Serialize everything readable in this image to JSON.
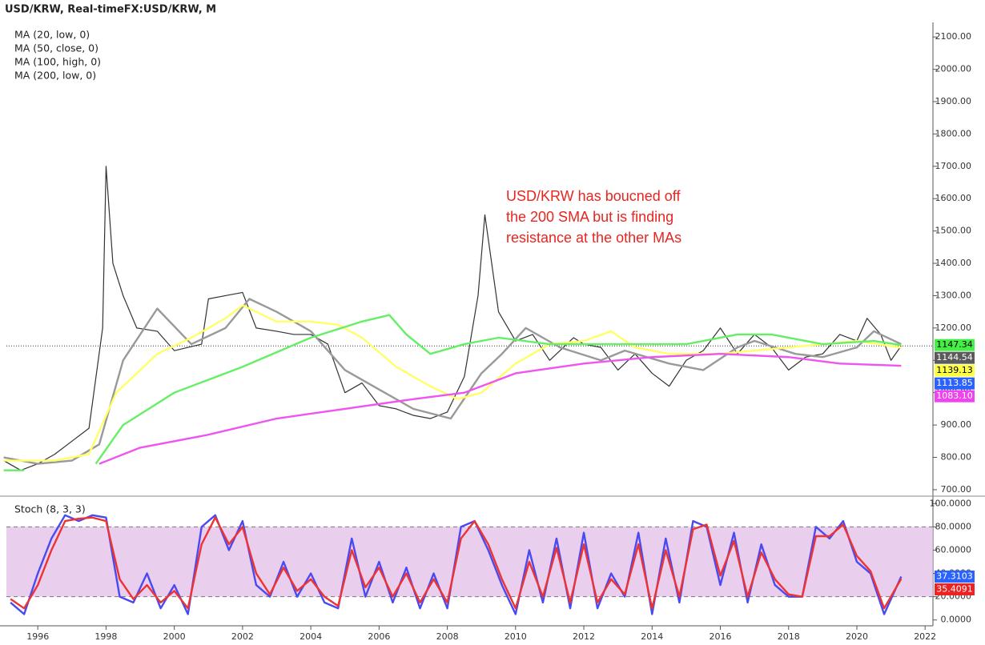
{
  "header": "USD/KRW, Real-timeFX:USD/KRW, M",
  "indicators": [
    "MA (20, low, 0)",
    "MA (50, close, 0)",
    "MA (100, high, 0)",
    "MA (200, low, 0)"
  ],
  "annotation": [
    "USD/KRW has boucned off",
    "the 200 SMA but is finding",
    "resistance at the other MAs"
  ],
  "chart_data": [
    {
      "type": "line",
      "xlim": [
        1995.08,
        2022.23
      ],
      "xticks": [
        1996,
        1998,
        2000,
        2002,
        2004,
        2006,
        2008,
        2010,
        2012,
        2014,
        2016,
        2018,
        2020,
        2022
      ],
      "ylim": [
        680,
        2145
      ],
      "yticks": [
        {
          "value": 700,
          "label": "700.00"
        },
        {
          "value": 800,
          "label": "800.00"
        },
        {
          "value": 900,
          "label": "900.00"
        },
        {
          "value": 1000,
          "label": "1000.00"
        },
        {
          "value": 1100,
          "label": "1100.00"
        },
        {
          "value": 1200,
          "label": "1200.00"
        },
        {
          "value": 1300,
          "label": "1300.00"
        },
        {
          "value": 1400,
          "label": "1400.00"
        },
        {
          "value": 1500,
          "label": "1500.00"
        },
        {
          "value": 1600,
          "label": "1600.00"
        },
        {
          "value": 1700,
          "label": "1700.00"
        },
        {
          "value": 1800,
          "label": "1800.00"
        },
        {
          "value": 1900,
          "label": "1900.00"
        },
        {
          "value": 2000,
          "label": "2000.00"
        },
        {
          "value": 2100,
          "label": "2100.00"
        }
      ],
      "last_price": 1144.54,
      "series": [
        {
          "color": "#333333",
          "x": [
            1995.0,
            1995.5,
            1996.0,
            1996.5,
            1997.0,
            1997.5,
            1997.9,
            1998.0,
            1998.2,
            1998.5,
            1998.9,
            1999.5,
            2000.0,
            2000.8,
            2001.0,
            2001.5,
            2002.0,
            2002.4,
            2003.0,
            2003.5,
            2004.0,
            2004.5,
            2005.0,
            2005.5,
            2006.0,
            2006.5,
            2007.0,
            2007.5,
            2008.0,
            2008.5,
            2008.9,
            2009.1,
            2009.5,
            2010.0,
            2010.5,
            2011.0,
            2011.7,
            2012.0,
            2012.5,
            2013.0,
            2013.5,
            2014.0,
            2014.5,
            2015.0,
            2015.5,
            2016.0,
            2016.5,
            2017.0,
            2017.5,
            2018.0,
            2018.5,
            2019.0,
            2019.5,
            2020.0,
            2020.3,
            2020.7,
            2021.0,
            2021.3
          ],
          "values": [
            790,
            760,
            780,
            810,
            850,
            890,
            1200,
            1700,
            1400,
            1300,
            1200,
            1190,
            1130,
            1150,
            1290,
            1300,
            1310,
            1200,
            1190,
            1180,
            1180,
            1150,
            1000,
            1030,
            960,
            950,
            930,
            920,
            940,
            1050,
            1300,
            1550,
            1250,
            1160,
            1180,
            1100,
            1170,
            1150,
            1140,
            1070,
            1120,
            1060,
            1020,
            1100,
            1130,
            1200,
            1120,
            1180,
            1140,
            1070,
            1110,
            1120,
            1180,
            1160,
            1230,
            1180,
            1100,
            1144.54
          ]
        },
        {
          "color": "#999999",
          "x": [
            1995.0,
            1996.0,
            1997.0,
            1997.8,
            1998.5,
            1999.5,
            2000.5,
            2001.5,
            2002.2,
            2003.0,
            2004.0,
            2005.0,
            2006.0,
            2007.0,
            2008.1,
            2009.0,
            2009.6,
            2010.3,
            2011.3,
            2012.5,
            2013.2,
            2014.5,
            2015.5,
            2016.5,
            2017.0,
            2018.2,
            2019.0,
            2020.0,
            2020.5,
            2021.3
          ],
          "values": [
            800,
            780,
            790,
            840,
            1100,
            1260,
            1150,
            1200,
            1290,
            1250,
            1190,
            1070,
            1010,
            950,
            920,
            1060,
            1120,
            1200,
            1140,
            1100,
            1130,
            1090,
            1070,
            1140,
            1160,
            1120,
            1110,
            1140,
            1190,
            1150
          ]
        },
        {
          "color": "#ffff66",
          "x": [
            1995.0,
            1996.5,
            1997.5,
            1998.3,
            1999.5,
            2000.5,
            2001.5,
            2002.0,
            2003.0,
            2004.0,
            2004.8,
            2005.5,
            2006.5,
            2007.5,
            2008.3,
            2009.0,
            2010.0,
            2011.0,
            2012.0,
            2012.8,
            2013.5,
            2014.5,
            2016.0,
            2017.0,
            2018.0,
            2019.0,
            2020.0,
            2021.3
          ],
          "values": [
            790,
            790,
            810,
            1000,
            1120,
            1170,
            1230,
            1270,
            1220,
            1220,
            1210,
            1170,
            1080,
            1020,
            980,
            1000,
            1090,
            1150,
            1160,
            1190,
            1140,
            1120,
            1120,
            1130,
            1140,
            1150,
            1160,
            1139.13
          ]
        },
        {
          "color": "#66ee66",
          "x": [
            1995.0,
            1995.6,
            1996.0,
            1997.7,
            1998.5,
            2000.0,
            2002.0,
            2004.0,
            2005.5,
            2006.3,
            2006.8,
            2007.5,
            2008.5,
            2009.5,
            2011.0,
            2013.0,
            2015.0,
            2016.5,
            2017.5,
            2019.0,
            2020.5,
            2021.3
          ],
          "values": [
            760,
            760,
            null,
            780,
            900,
            1000,
            1080,
            1170,
            1220,
            1240,
            1180,
            1120,
            1150,
            1170,
            1150,
            1150,
            1150,
            1180,
            1180,
            1150,
            1160,
            1147.34
          ]
        },
        {
          "color": "#ee55ee",
          "x": [
            1997.8,
            1999.0,
            2001.0,
            2003.0,
            2005.0,
            2007.0,
            2008.5,
            2010.0,
            2012.0,
            2014.0,
            2016.0,
            2018.0,
            2019.5,
            2021.3
          ],
          "values": [
            780,
            830,
            870,
            920,
            950,
            980,
            1000,
            1060,
            1090,
            1110,
            1120,
            1110,
            1090,
            1083.1
          ]
        }
      ],
      "price_tags": [
        {
          "value": 1147.34,
          "color": "#44ee44"
        },
        {
          "value": 1144.54,
          "color": "#5a5a5a"
        },
        {
          "value": 1139.13,
          "color": "#ffff44"
        },
        {
          "value": 1113.85,
          "color": "#2962ff"
        },
        {
          "value": 1083.1,
          "label": "1083.10",
          "color": "#ee44ee"
        }
      ]
    },
    {
      "type": "line",
      "title": "Stoch (8, 3, 3)",
      "ylim": [
        -5,
        105
      ],
      "yticks": [
        {
          "value": 0,
          "label": "0.0000"
        },
        {
          "value": 20,
          "label": "20.0000"
        },
        {
          "value": 40,
          "label": "40.0000"
        },
        {
          "value": 60,
          "label": "60.0000"
        },
        {
          "value": 80,
          "label": "80.0000"
        },
        {
          "value": 100,
          "label": "100.0000"
        }
      ],
      "band": [
        20,
        80
      ],
      "x": [
        1995.2,
        1995.6,
        1996.0,
        1996.4,
        1996.8,
        1997.2,
        1997.6,
        1998.0,
        1998.4,
        1998.8,
        1999.2,
        1999.6,
        2000.0,
        2000.4,
        2000.8,
        2001.2,
        2001.6,
        2002.0,
        2002.4,
        2002.8,
        2003.2,
        2003.6,
        2004.0,
        2004.4,
        2004.8,
        2005.2,
        2005.6,
        2006.0,
        2006.4,
        2006.8,
        2007.2,
        2007.6,
        2008.0,
        2008.4,
        2008.8,
        2009.2,
        2009.6,
        2010.0,
        2010.4,
        2010.8,
        2011.2,
        2011.6,
        2012.0,
        2012.4,
        2012.8,
        2013.2,
        2013.6,
        2014.0,
        2014.4,
        2014.8,
        2015.2,
        2015.6,
        2016.0,
        2016.4,
        2016.8,
        2017.2,
        2017.6,
        2018.0,
        2018.4,
        2018.8,
        2019.2,
        2019.6,
        2020.0,
        2020.4,
        2020.8,
        2021.3
      ],
      "series": [
        {
          "color": "#4a4af0",
          "values": [
            15,
            5,
            40,
            70,
            90,
            85,
            90,
            88,
            20,
            15,
            40,
            10,
            30,
            5,
            80,
            90,
            60,
            85,
            30,
            20,
            50,
            20,
            40,
            15,
            10,
            70,
            20,
            50,
            15,
            45,
            10,
            40,
            10,
            80,
            85,
            60,
            30,
            5,
            60,
            15,
            70,
            10,
            75,
            10,
            40,
            20,
            75,
            5,
            70,
            15,
            85,
            80,
            30,
            75,
            15,
            65,
            30,
            20,
            20,
            80,
            70,
            85,
            50,
            40,
            5,
            37.3103
          ]
        },
        {
          "color": "#ee3333",
          "values": [
            18,
            10,
            30,
            60,
            85,
            87,
            88,
            85,
            35,
            18,
            30,
            15,
            25,
            10,
            65,
            88,
            65,
            80,
            40,
            22,
            45,
            25,
            35,
            20,
            12,
            60,
            28,
            45,
            20,
            40,
            15,
            35,
            15,
            70,
            85,
            65,
            35,
            10,
            50,
            20,
            62,
            15,
            65,
            15,
            35,
            22,
            65,
            10,
            60,
            20,
            78,
            82,
            38,
            68,
            20,
            58,
            35,
            22,
            20,
            72,
            72,
            82,
            55,
            42,
            10,
            35.4091
          ]
        }
      ],
      "price_tags": [
        {
          "value": 37.3103,
          "color": "#2962ff"
        },
        {
          "value": 35.4091,
          "color": "#ee2222"
        }
      ]
    }
  ]
}
